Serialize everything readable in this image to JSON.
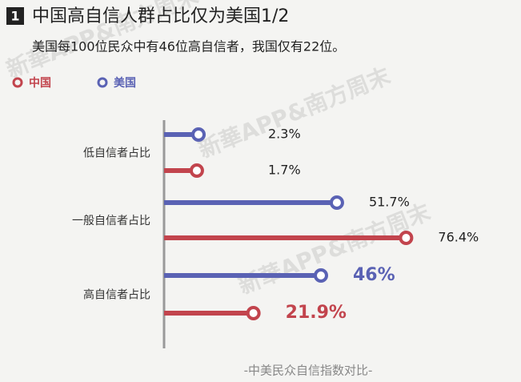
{
  "chart_data": {
    "type": "lollipop",
    "badge": "1",
    "title": "中国高自信人群占比仅为美国1/2",
    "subtitle": "美国每100位民众中有46位高自信者，我国仅有22位。",
    "categories": [
      "低自信者占比",
      "一般自信者占比",
      "高自信者占比"
    ],
    "series": [
      {
        "name": "中国",
        "color": "#c2444d",
        "values": [
          1.7,
          76.4,
          21.9
        ],
        "value_labels": [
          "1.7%",
          "76.4%",
          "21.9%"
        ]
      },
      {
        "name": "美国",
        "color": "#5a62b4",
        "values": [
          2.3,
          51.7,
          46
        ],
        "value_labels": [
          "2.3%",
          "51.7%",
          "46%"
        ]
      }
    ],
    "legend": "top-left",
    "footer": "-中美民众自信指数对比-",
    "watermark": "新華APP&南方周末"
  }
}
